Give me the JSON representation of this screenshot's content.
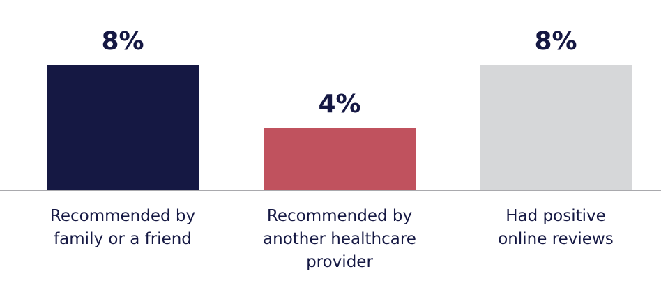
{
  "chart_data": {
    "type": "bar",
    "categories": [
      [
        "Recommended by",
        "family or a friend"
      ],
      [
        "Recommended by",
        "another healthcare",
        "provider"
      ],
      [
        "Had positive",
        "online reviews"
      ]
    ],
    "values": [
      8,
      4,
      8
    ],
    "data_labels": [
      "8%",
      "4%",
      "8%"
    ],
    "colors": [
      "#151843",
      "#C0525E",
      "#D6D7D9"
    ],
    "ylim": [
      0,
      8
    ],
    "grid": false,
    "legend": "none",
    "title": "",
    "xlabel": "",
    "ylabel": ""
  },
  "colors": {
    "baseline": "#A9A9AD",
    "text": "#151843"
  }
}
